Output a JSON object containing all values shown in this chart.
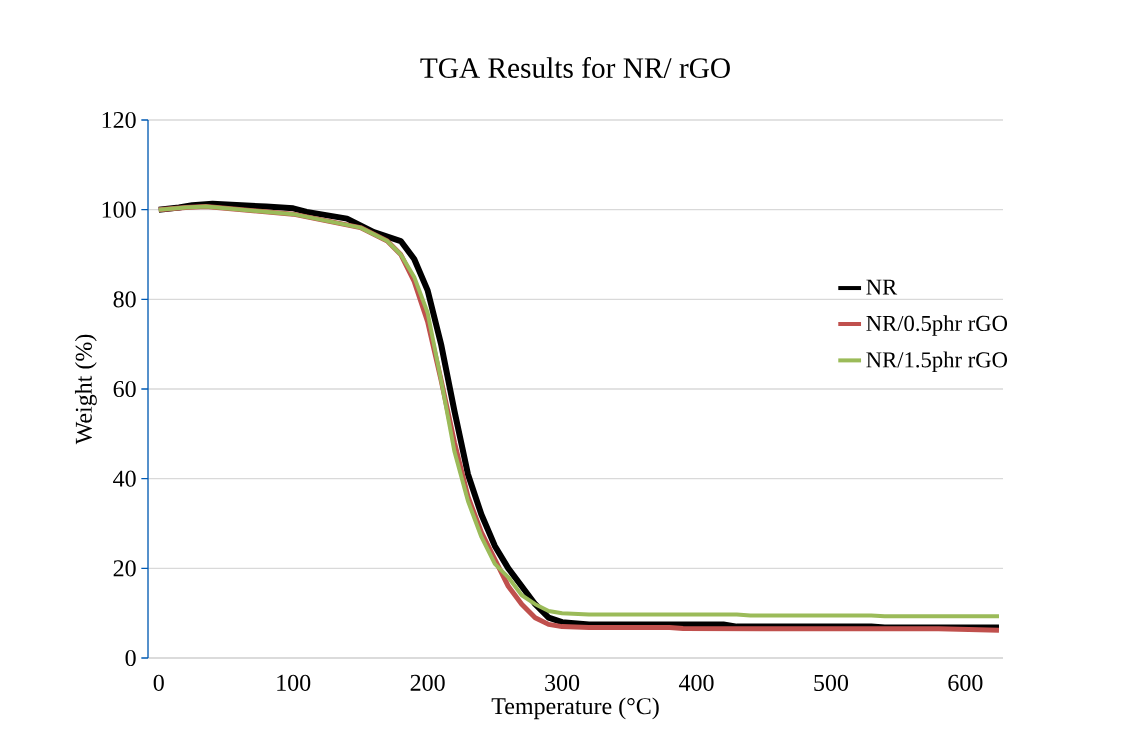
{
  "chart_data": {
    "type": "line",
    "title": "TGA Results for NR/ rGO",
    "xlabel": "Temperature (°C)",
    "ylabel": "Weight (%)",
    "xlim": [
      -8,
      628
    ],
    "xticks": [
      0,
      100,
      200,
      300,
      400,
      500,
      600
    ],
    "ylim": [
      0,
      120
    ],
    "yticks": [
      0,
      20,
      40,
      60,
      80,
      100,
      120
    ],
    "grid": "y",
    "legend": "right",
    "marker": "none",
    "line_style": "solid",
    "series": [
      {
        "name": "NR",
        "color": "#000000",
        "x": [
          0,
          15,
          25,
          40,
          80,
          100,
          110,
          140,
          160,
          180,
          190,
          200,
          210,
          220,
          230,
          240,
          250,
          260,
          270,
          280,
          290,
          300,
          320,
          420,
          430,
          530,
          540,
          625
        ],
        "values": [
          100,
          100.5,
          101,
          101.3,
          100.7,
          100.3,
          99.5,
          98,
          95,
          93,
          89,
          82,
          70,
          55,
          41,
          32,
          25,
          20,
          16,
          12,
          9,
          8,
          7.5,
          7.5,
          7,
          7,
          6.8,
          6.8
        ]
      },
      {
        "name": "NR/0.5phr rGO",
        "color": "#c0504d",
        "x": [
          0,
          20,
          35,
          100,
          150,
          170,
          180,
          190,
          200,
          210,
          220,
          230,
          240,
          250,
          260,
          270,
          280,
          290,
          300,
          320,
          380,
          390,
          500,
          580,
          625
        ],
        "values": [
          100,
          100.5,
          100.7,
          99,
          96,
          93,
          90,
          84,
          75,
          62,
          48,
          36,
          28,
          22,
          16,
          12,
          9,
          7.5,
          7,
          6.8,
          6.8,
          6.6,
          6.5,
          6.5,
          6.2
        ]
      },
      {
        "name": "NR/1.5phr rGO",
        "color": "#9bbb59",
        "x": [
          0,
          20,
          35,
          100,
          150,
          170,
          180,
          190,
          200,
          210,
          220,
          230,
          240,
          250,
          260,
          270,
          280,
          290,
          300,
          320,
          430,
          440,
          530,
          540,
          625
        ],
        "values": [
          100,
          100.5,
          100.7,
          99,
          96,
          93,
          90,
          85,
          77,
          62,
          46,
          35,
          27,
          21,
          18,
          14,
          12,
          10.5,
          10,
          9.7,
          9.7,
          9.5,
          9.5,
          9.3,
          9.3
        ]
      }
    ]
  }
}
